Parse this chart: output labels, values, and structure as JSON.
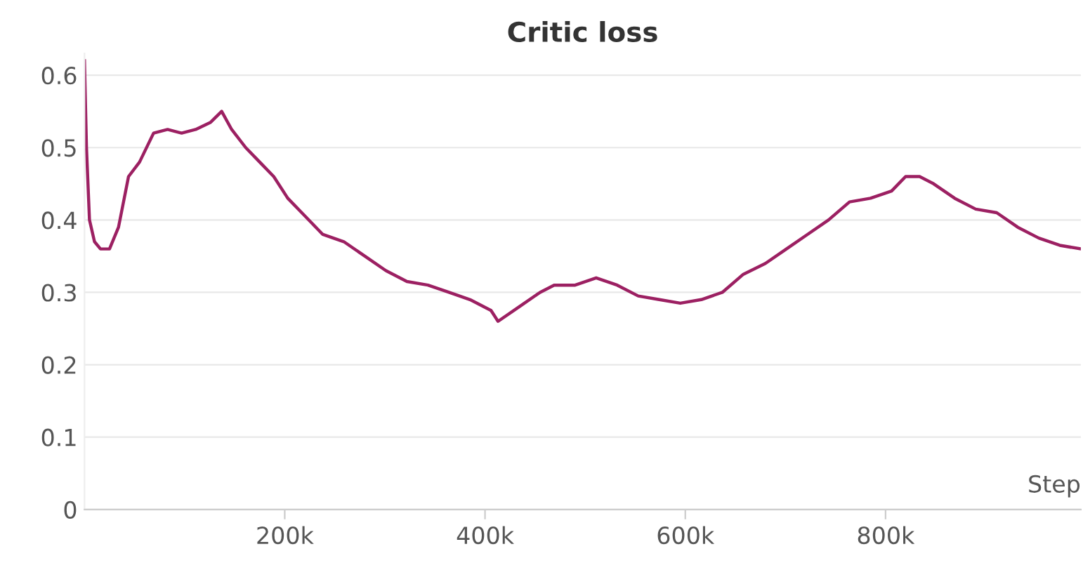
{
  "chart_data": {
    "type": "line",
    "title": "Critic loss",
    "xlabel": "Step",
    "x": [
      0,
      2000,
      5000,
      10000,
      16000,
      25000,
      34000,
      44000,
      55000,
      69000,
      83000,
      97000,
      111000,
      126000,
      137000,
      147000,
      161000,
      175000,
      189000,
      203000,
      217000,
      238000,
      259000,
      280000,
      301000,
      322000,
      343000,
      364000,
      385000,
      406000,
      413000,
      434000,
      455000,
      469000,
      490000,
      511000,
      532000,
      553000,
      574000,
      595000,
      616000,
      637000,
      658000,
      680000,
      701000,
      722000,
      743000,
      764000,
      785000,
      806000,
      820000,
      834000,
      848000,
      869000,
      890000,
      911000,
      932000,
      953000,
      974000,
      995000
    ],
    "series": [
      {
        "color": "#9c2062",
        "values": [
          0.62,
          0.5,
          0.4,
          0.37,
          0.36,
          0.36,
          0.39,
          0.46,
          0.48,
          0.52,
          0.525,
          0.52,
          0.525,
          0.535,
          0.55,
          0.525,
          0.5,
          0.48,
          0.46,
          0.43,
          0.41,
          0.38,
          0.37,
          0.35,
          0.33,
          0.315,
          0.31,
          0.3,
          0.29,
          0.275,
          0.26,
          0.28,
          0.3,
          0.31,
          0.31,
          0.32,
          0.31,
          0.295,
          0.29,
          0.285,
          0.29,
          0.3,
          0.325,
          0.34,
          0.36,
          0.38,
          0.4,
          0.425,
          0.43,
          0.44,
          0.46,
          0.46,
          0.45,
          0.43,
          0.415,
          0.41,
          0.39,
          0.375,
          0.365,
          0.36
        ]
      }
    ],
    "xlim": [
      0,
      995000
    ],
    "ylim": [
      0,
      0.63
    ],
    "xticks": [
      {
        "value": 200000,
        "label": "200k"
      },
      {
        "value": 400000,
        "label": "400k"
      },
      {
        "value": 600000,
        "label": "600k"
      },
      {
        "value": 800000,
        "label": "800k"
      }
    ],
    "yticks": [
      0,
      0.1,
      0.2,
      0.3,
      0.4,
      0.5,
      0.6
    ],
    "grid": "y",
    "marker": "none",
    "line_style": "solid"
  }
}
